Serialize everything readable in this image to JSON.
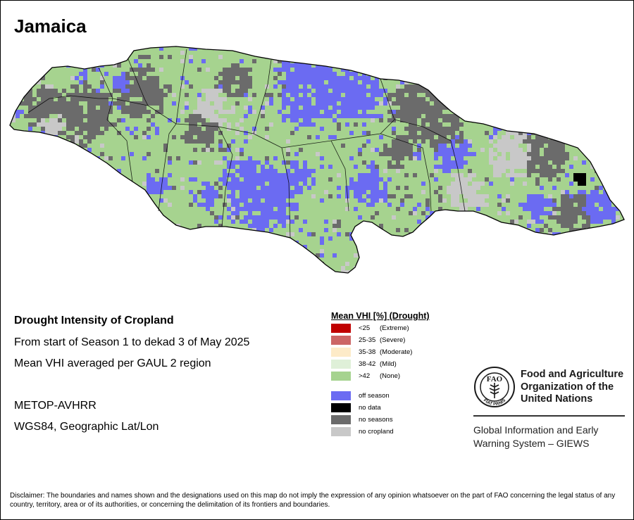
{
  "map": {
    "title": "Jamaica",
    "colors": {
      "none": "#a6d38f",
      "off_season": "#6b6bf2",
      "no_seasons": "#6b6b6b",
      "no_cropland": "#c8c8c8",
      "no_data": "#000000"
    }
  },
  "info": {
    "heading": "Drought Intensity of Cropland",
    "period": "From start of Season 1 to dekad 3 of May 2025",
    "aggregation": "Mean VHI averaged per GAUL 2 region",
    "sensor": "METOP-AVHRR",
    "projection": "WGS84, Geographic Lat/Lon"
  },
  "legend": {
    "title": "Mean VHI [%] (Drought)",
    "classes": [
      {
        "range": "<25",
        "label": "(Extreme)",
        "color": "#c00000"
      },
      {
        "range": "25-35",
        "label": "(Severe)",
        "color": "#cc6666"
      },
      {
        "range": "35-38",
        "label": "(Moderate)",
        "color": "#fdebc8"
      },
      {
        "range": "38-42",
        "label": "(Mild)",
        "color": "#dff0d8"
      },
      {
        "range": ">42",
        "label": "(None)",
        "color": "#a6d38f"
      }
    ],
    "other": [
      {
        "label": "off season",
        "color": "#6b6bf2"
      },
      {
        "label": "no data",
        "color": "#000000"
      },
      {
        "label": "no seasons",
        "color": "#6b6b6b"
      },
      {
        "label": "no cropland",
        "color": "#c8c8c8"
      }
    ]
  },
  "fao": {
    "logo_text": "FIAT PANIS",
    "logo_letters": "FAO",
    "line1": "Food and Agriculture",
    "line2": "Organization of the",
    "line3": "United Nations"
  },
  "giews": {
    "line1": "Global Information and Early",
    "line2": "Warning System – GIEWS"
  },
  "disclaimer": "Disclaimer: The boundaries and names shown and the designations used on this map do not imply the expression of any opinion whatsoever on the part of FAO concerning the legal status of any country, territory, area or of its authorities, or concerning the delimitation of its frontiers and boundaries."
}
